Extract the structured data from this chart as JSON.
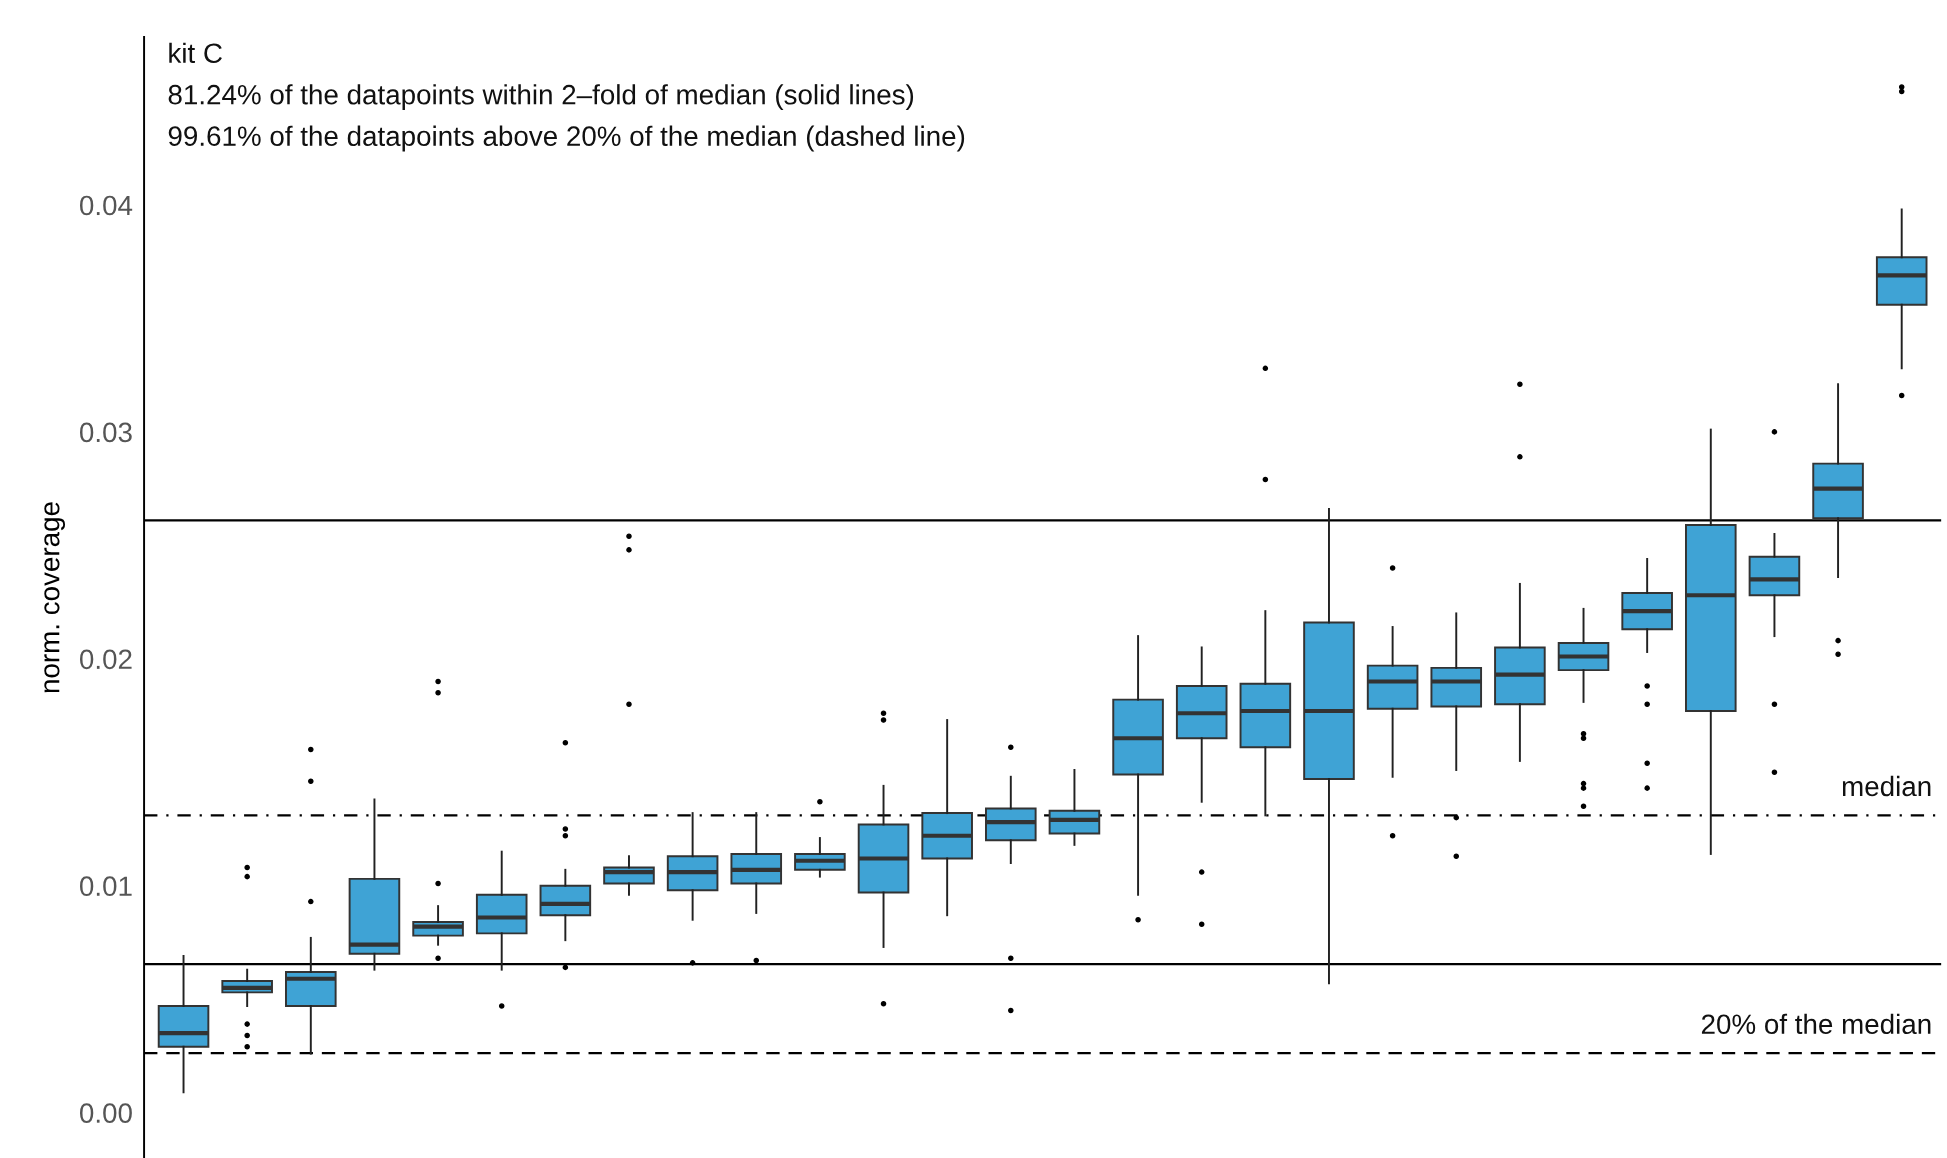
{
  "chart_data": {
    "type": "box",
    "ylabel": "norm. coverage",
    "ylim": [
      -0.002,
      0.0474
    ],
    "yticks": [
      {
        "value": 0,
        "label": "0.00"
      },
      0.01,
      0.02,
      0.03,
      0.04
    ],
    "tick_labels": "y",
    "grid": false,
    "legend": false,
    "color": "#3fa3d5",
    "categories": [
      null,
      null,
      null,
      null,
      null,
      null,
      null,
      null,
      null,
      null,
      null,
      null,
      null,
      null,
      null,
      null,
      null,
      null,
      null,
      null,
      null,
      null,
      null,
      null,
      null,
      null,
      null,
      null
    ],
    "boxes": [
      {
        "low": 0.0009,
        "q1": 0.0029,
        "median": 0.0035,
        "q3": 0.0047,
        "high": 0.0069
      },
      {
        "low": 0.0047,
        "q1": 0.0053,
        "median": 0.0055,
        "q3": 0.0058,
        "high": 0.0063,
        "outliers": [
          0.0108,
          0.0104,
          0.0039,
          0.0034,
          0.0029
        ]
      },
      {
        "low": 0.0026,
        "q1": 0.0047,
        "median": 0.0059,
        "q3": 0.0062,
        "high": 0.0077,
        "outliers": [
          0.016,
          0.0146,
          0.0093
        ]
      },
      {
        "low": 0.0063,
        "q1": 0.007,
        "median": 0.0074,
        "q3": 0.0103,
        "high": 0.0138
      },
      {
        "low": 0.0074,
        "q1": 0.0078,
        "median": 0.0082,
        "q3": 0.0084,
        "high": 0.0091,
        "outliers": [
          0.019,
          0.0185,
          0.0101,
          0.0068
        ]
      },
      {
        "low": 0.0063,
        "q1": 0.0079,
        "median": 0.0086,
        "q3": 0.0096,
        "high": 0.0115,
        "outliers": [
          0.0047
        ]
      },
      {
        "low": 0.0076,
        "q1": 0.0087,
        "median": 0.0092,
        "q3": 0.01,
        "high": 0.0107,
        "outliers": [
          0.0163,
          0.0125,
          0.0122,
          0.0064
        ]
      },
      {
        "low": 0.0096,
        "q1": 0.0101,
        "median": 0.0106,
        "q3": 0.0108,
        "high": 0.0113,
        "outliers": [
          0.0254,
          0.0248,
          0.018
        ]
      },
      {
        "low": 0.0085,
        "q1": 0.0098,
        "median": 0.0106,
        "q3": 0.0113,
        "high": 0.0132,
        "outliers": [
          0.0066
        ]
      },
      {
        "low": 0.0088,
        "q1": 0.0101,
        "median": 0.0107,
        "q3": 0.0114,
        "high": 0.0132,
        "outliers": [
          0.0067
        ]
      },
      {
        "low": 0.0104,
        "q1": 0.0107,
        "median": 0.0111,
        "q3": 0.0114,
        "high": 0.0121,
        "outliers": [
          0.0137
        ]
      },
      {
        "low": 0.0073,
        "q1": 0.0097,
        "median": 0.0112,
        "q3": 0.0127,
        "high": 0.0144,
        "outliers": [
          0.0176,
          0.0173,
          0.0048
        ]
      },
      {
        "low": 0.0087,
        "q1": 0.0112,
        "median": 0.0122,
        "q3": 0.0132,
        "high": 0.0173
      },
      {
        "low": 0.011,
        "q1": 0.012,
        "median": 0.0128,
        "q3": 0.0134,
        "high": 0.0148,
        "outliers": [
          0.0161,
          0.0068,
          0.0045
        ]
      },
      {
        "low": 0.0118,
        "q1": 0.0123,
        "median": 0.0129,
        "q3": 0.0133,
        "high": 0.0151
      },
      {
        "low": 0.0096,
        "q1": 0.0149,
        "median": 0.0165,
        "q3": 0.0182,
        "high": 0.021,
        "outliers": [
          0.0085
        ]
      },
      {
        "low": 0.0137,
        "q1": 0.0165,
        "median": 0.0176,
        "q3": 0.0188,
        "high": 0.0205,
        "outliers": [
          0.0106,
          0.0083
        ]
      },
      {
        "low": 0.0131,
        "q1": 0.0161,
        "median": 0.0177,
        "q3": 0.0189,
        "high": 0.0221,
        "outliers": [
          0.0328,
          0.0279
        ]
      },
      {
        "low": 0.0057,
        "q1": 0.0147,
        "median": 0.0177,
        "q3": 0.0216,
        "high": 0.0266
      },
      {
        "low": 0.0148,
        "q1": 0.0178,
        "median": 0.019,
        "q3": 0.0197,
        "high": 0.0214,
        "outliers": [
          0.024,
          0.0122
        ]
      },
      {
        "low": 0.0151,
        "q1": 0.0179,
        "median": 0.019,
        "q3": 0.0196,
        "high": 0.022,
        "outliers": [
          0.013,
          0.0113
        ]
      },
      {
        "low": 0.0155,
        "q1": 0.018,
        "median": 0.0193,
        "q3": 0.0205,
        "high": 0.0233,
        "outliers": [
          0.0321,
          0.0289
        ]
      },
      {
        "low": 0.0181,
        "q1": 0.0195,
        "median": 0.0201,
        "q3": 0.0207,
        "high": 0.0222,
        "outliers": [
          0.0167,
          0.0165,
          0.0145,
          0.0143,
          0.0135
        ]
      },
      {
        "low": 0.0203,
        "q1": 0.0213,
        "median": 0.0221,
        "q3": 0.0229,
        "high": 0.0244,
        "outliers": [
          0.0188,
          0.018,
          0.0154,
          0.0143
        ]
      },
      {
        "low": 0.0114,
        "q1": 0.0177,
        "median": 0.0228,
        "q3": 0.0259,
        "high": 0.0301
      },
      {
        "low": 0.021,
        "q1": 0.0228,
        "median": 0.0235,
        "q3": 0.0245,
        "high": 0.0255,
        "outliers": [
          0.03,
          0.018,
          0.015
        ]
      },
      {
        "low": 0.0236,
        "q1": 0.0262,
        "median": 0.0275,
        "q3": 0.0286,
        "high": 0.0321,
        "outliers": [
          0.0208,
          0.0202
        ]
      },
      {
        "low": 0.0328,
        "q1": 0.0356,
        "median": 0.0369,
        "q3": 0.0377,
        "high": 0.0398,
        "outliers": [
          0.0452,
          0.045,
          0.0316
        ]
      }
    ],
    "ref_lines": [
      {
        "axis": "y",
        "value": 0.0261,
        "label": null,
        "line_style": "solid",
        "color": "#000000"
      },
      {
        "axis": "y",
        "value": 0.0131,
        "label": "median",
        "line_style": "dashdot",
        "color": "#000000"
      },
      {
        "axis": "y",
        "value": 0.00654,
        "label": null,
        "line_style": "solid",
        "color": "#000000"
      },
      {
        "axis": "y",
        "value": 0.00262,
        "label": "20% of the median",
        "line_style": "dashed",
        "color": "#000000"
      }
    ],
    "annotations": [
      "kit C",
      "81.24% of the datapoints within 2–fold of median (solid lines)",
      "99.61% of the datapoints above 20% of the median (dashed line)"
    ]
  }
}
